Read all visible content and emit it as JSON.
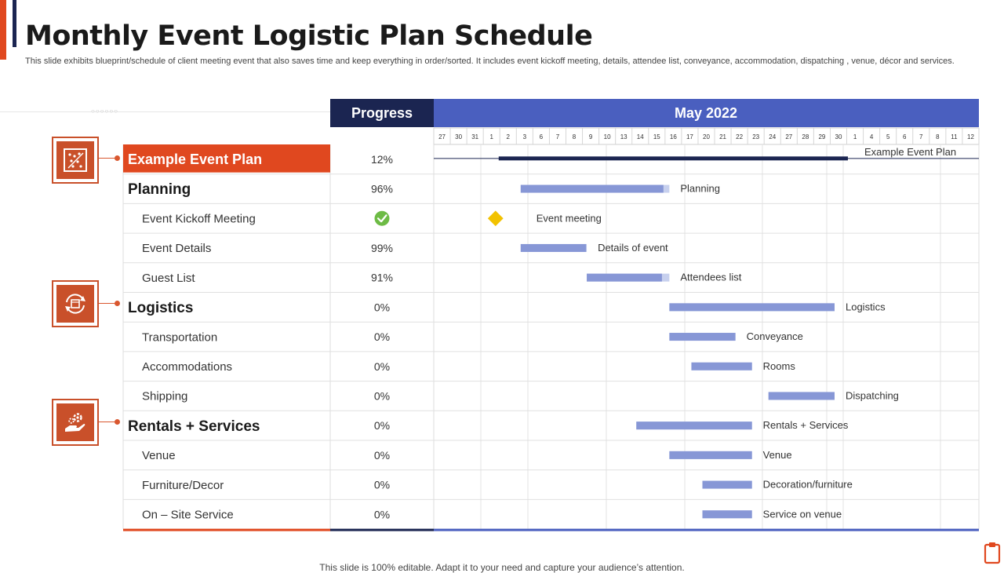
{
  "slide": {
    "title": "Monthly Event Logistic Plan Schedule",
    "subtitle": "This slide exhibits blueprint/schedule of client meeting event that also saves time and keep everything in order/sorted. It includes event kickoff meeting, details, attendee list, conveyance, accommodation, dispatching , venue, décor and services.",
    "footer": "This slide is 100% editable. Adapt it to your need and capture your audience’s attention."
  },
  "colors": {
    "accent_orange": "#e0481f",
    "navy": "#1b2551",
    "header_blue": "#4a5fbf",
    "bar_blue": "#8797d6",
    "bar_light": "#c7d0ee",
    "diamond": "#f2c200",
    "check_green": "#6dbb45",
    "icon_orange": "#c9502a"
  },
  "icons": [
    "gantt-chart-icon",
    "logistics-cycle-icon",
    "service-hand-gear-icon",
    "check-circle-icon",
    "milestone-diamond-icon",
    "clipboard-icon"
  ],
  "chart_data": {
    "type": "gantt",
    "progress_header": "Progress",
    "month_header": "May 2022",
    "date_ticks": [
      "27",
      "30",
      "31",
      "1",
      "2",
      "3",
      "6",
      "7",
      "8",
      "9",
      "10",
      "13",
      "14",
      "15",
      "16",
      "17",
      "20",
      "21",
      "22",
      "23",
      "24",
      "27",
      "28",
      "29",
      "30",
      "1",
      "4",
      "5",
      "6",
      "7",
      "8",
      "11",
      "12"
    ],
    "tasks": [
      {
        "name": "Example Event Plan",
        "level": "top",
        "progress": "12%",
        "bar": {
          "kind": "summary",
          "start": "May 2",
          "end": "May 31",
          "label": "Example Event Plan"
        }
      },
      {
        "name": "Planning",
        "level": "group",
        "progress": "96%",
        "bar": {
          "kind": "bar",
          "start": "May 3",
          "end": "May 16",
          "done": 0.96,
          "label": "Planning"
        }
      },
      {
        "name": "Event Kickoff Meeting",
        "level": "task",
        "progress": "",
        "progress_icon": "check-circle-icon",
        "bar": {
          "kind": "milestone",
          "date": "May 2",
          "label": "Event meeting"
        }
      },
      {
        "name": "Event Details",
        "level": "task",
        "progress": "99%",
        "bar": {
          "kind": "bar",
          "start": "May 3",
          "end": "May 9",
          "done": 0.99,
          "label": "Details of event"
        }
      },
      {
        "name": "Guest List",
        "level": "task",
        "progress": "91%",
        "bar": {
          "kind": "bar",
          "start": "May 9",
          "end": "May 16",
          "done": 0.91,
          "label": "Attendees list"
        }
      },
      {
        "name": "Logistics",
        "level": "group",
        "progress": "0%",
        "bar": {
          "kind": "bar",
          "start": "May 16",
          "end": "May 31",
          "done": 0,
          "label": "Logistics"
        }
      },
      {
        "name": "Transportation",
        "level": "task",
        "progress": "0%",
        "bar": {
          "kind": "bar",
          "start": "May 16",
          "end": "May 22",
          "done": 0,
          "label": "Conveyance"
        }
      },
      {
        "name": "Accommodations",
        "level": "task",
        "progress": "0%",
        "bar": {
          "kind": "bar",
          "start": "May 18",
          "end": "May 23",
          "done": 0,
          "label": "Rooms"
        }
      },
      {
        "name": "Shipping",
        "level": "task",
        "progress": "0%",
        "bar": {
          "kind": "bar",
          "start": "May 24",
          "end": "May 30",
          "done": 0,
          "label": "Dispatching"
        }
      },
      {
        "name": "Rentals + Services",
        "level": "group",
        "progress": "0%",
        "bar": {
          "kind": "bar",
          "start": "May 14",
          "end": "May 23",
          "done": 0,
          "label": "Rentals + Services"
        }
      },
      {
        "name": "Venue",
        "level": "task",
        "progress": "0%",
        "bar": {
          "kind": "bar",
          "start": "May 16",
          "end": "May 23",
          "done": 0,
          "label": "Venue"
        }
      },
      {
        "name": "Furniture/Decor",
        "level": "task",
        "progress": "0%",
        "bar": {
          "kind": "bar",
          "start": "May 20",
          "end": "May 23",
          "done": 0,
          "label": "Decoration/furniture"
        }
      },
      {
        "name": "On – Site Service",
        "level": "task",
        "progress": "0%",
        "bar": {
          "kind": "bar",
          "start": "May 20",
          "end": "May 23",
          "done": 0,
          "label": "Service on venue"
        }
      }
    ]
  }
}
